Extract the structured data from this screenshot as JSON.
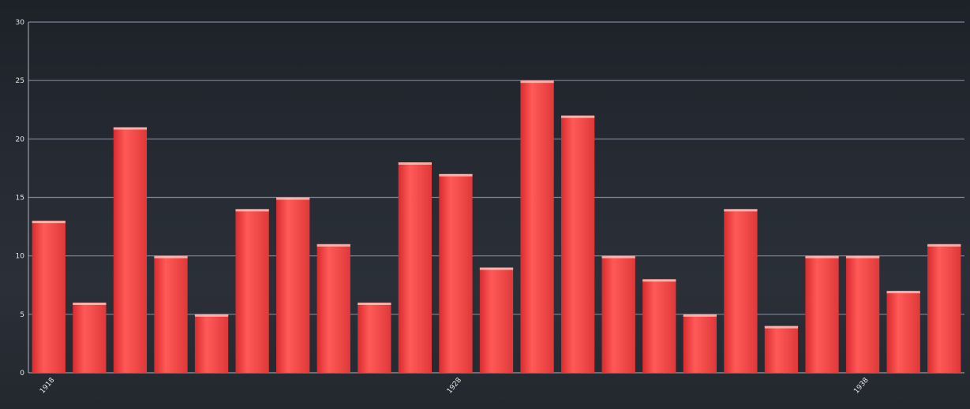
{
  "chart_data": {
    "type": "bar",
    "title": "",
    "xlabel": "",
    "ylabel": "",
    "ylim": [
      0,
      30
    ],
    "y_ticks": [
      0,
      5,
      10,
      15,
      20,
      25,
      30
    ],
    "x_tick_labels": [
      {
        "label": "1918",
        "index": 0
      },
      {
        "label": "1928",
        "index": 10
      },
      {
        "label": "1938",
        "index": 20
      }
    ],
    "values": [
      13,
      6,
      21,
      10,
      5,
      14,
      15,
      11,
      6,
      18,
      17,
      9,
      25,
      22,
      10,
      8,
      5,
      14,
      4,
      10,
      10,
      7,
      11
    ],
    "grid": true,
    "colors": {
      "bar": "#e8383b",
      "bar_highlight": "#ff5e5c",
      "bar_top": "#ffd2c8",
      "background": "#252a31",
      "gridline": "#8f97a6",
      "text": "#e6e6e6"
    }
  }
}
